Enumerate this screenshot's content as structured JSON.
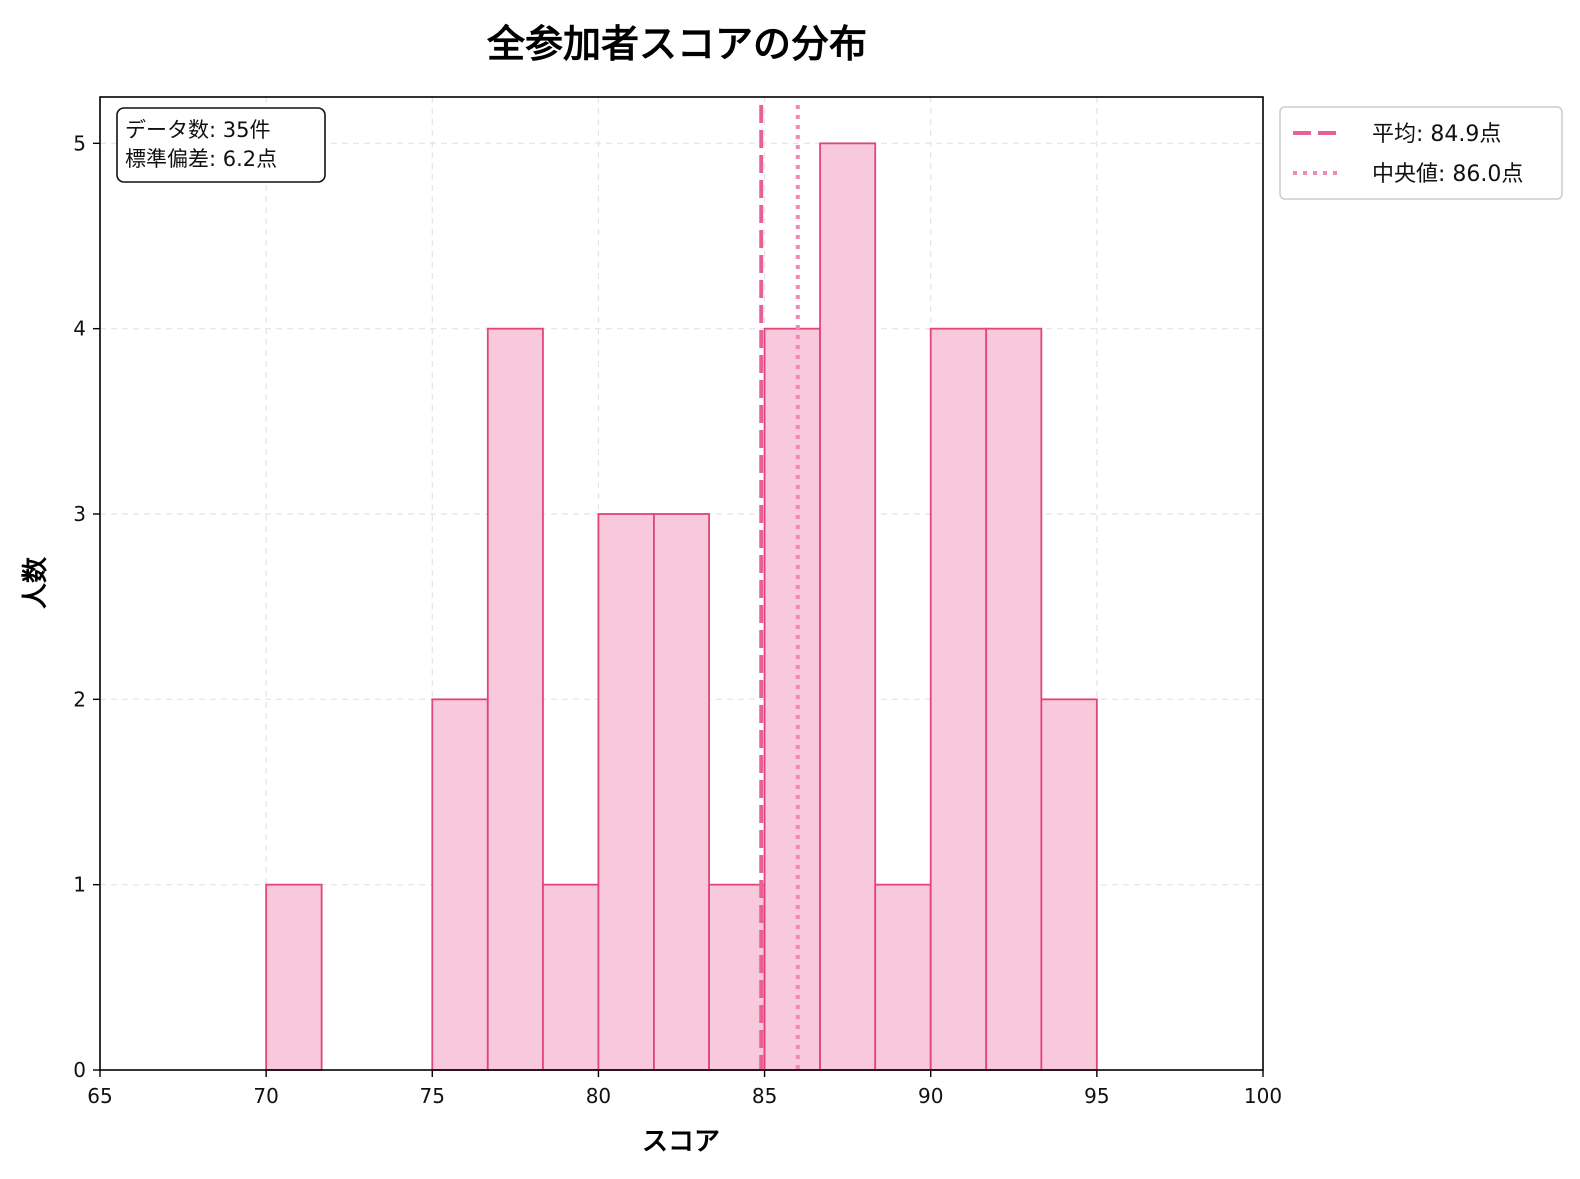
{
  "chart_data": {
    "type": "bar",
    "title": "全参加者スコアの分布",
    "xlabel": "スコア",
    "ylabel": "人数",
    "xlim": [
      65,
      100
    ],
    "ylim": [
      0,
      5.25
    ],
    "xticks": [
      65,
      70,
      75,
      80,
      85,
      90,
      95,
      100
    ],
    "yticks": [
      0,
      1,
      2,
      3,
      4,
      5
    ],
    "grid": true,
    "bar_fill": "#f7c9da",
    "bar_edge": "#e0457e",
    "bins": [
      {
        "start": 70.0,
        "end": 71.67,
        "count": 1
      },
      {
        "start": 71.67,
        "end": 73.33,
        "count": 0
      },
      {
        "start": 73.33,
        "end": 75.0,
        "count": 0
      },
      {
        "start": 75.0,
        "end": 76.67,
        "count": 2
      },
      {
        "start": 76.67,
        "end": 78.33,
        "count": 4
      },
      {
        "start": 78.33,
        "end": 80.0,
        "count": 1
      },
      {
        "start": 80.0,
        "end": 81.67,
        "count": 3
      },
      {
        "start": 81.67,
        "end": 83.33,
        "count": 3
      },
      {
        "start": 83.33,
        "end": 85.0,
        "count": 1
      },
      {
        "start": 85.0,
        "end": 86.67,
        "count": 4
      },
      {
        "start": 86.67,
        "end": 88.33,
        "count": 5
      },
      {
        "start": 88.33,
        "end": 90.0,
        "count": 1
      },
      {
        "start": 90.0,
        "end": 91.67,
        "count": 4
      },
      {
        "start": 91.67,
        "end": 93.33,
        "count": 4
      },
      {
        "start": 93.33,
        "end": 95.0,
        "count": 2
      }
    ],
    "reference_lines": [
      {
        "name": "平均",
        "label": "平均: 84.9点",
        "value": 84.9,
        "style": "dashed",
        "color": "#e8609a"
      },
      {
        "name": "中央値",
        "label": "中央値: 86.0点",
        "value": 86.0,
        "style": "dotted",
        "color": "#f088b8"
      }
    ],
    "legend_position": "outside-top-right",
    "stats_box": {
      "lines": [
        "データ数: 35件",
        "標準偏差: 6.2点"
      ],
      "position": "top-left"
    }
  }
}
